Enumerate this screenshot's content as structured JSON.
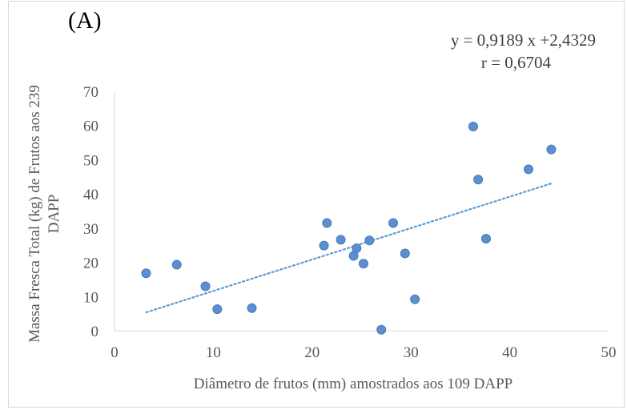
{
  "chart_data": {
    "type": "scatter",
    "panel_label": "(A)",
    "equation": "y = 0,9189 x +2,4329",
    "r_text": "r = 0,6704",
    "xlabel": "Diâmetro de frutos (mm) amostrados aos 109 DAPP",
    "ylabel_line1": "Massa Fresca Total (kg) de Frutos aos 239",
    "ylabel_line2": "DAPP",
    "xlim": [
      0,
      50
    ],
    "ylim": [
      0,
      70
    ],
    "x_ticks": [
      "0",
      "10",
      "20",
      "30",
      "40",
      "50"
    ],
    "y_ticks": [
      "0",
      "10",
      "20",
      "30",
      "40",
      "50",
      "60",
      "70"
    ],
    "grid": false,
    "series": [
      {
        "x": [
          3.2,
          6.3,
          9.2,
          10.4,
          13.9,
          21.2,
          21.5,
          22.9,
          24.2,
          24.5,
          25.2,
          25.8,
          27.0,
          28.2,
          29.4,
          30.4,
          36.3,
          36.8,
          37.6,
          41.9,
          44.2
        ],
        "y": [
          16.8,
          19.3,
          13.0,
          6.3,
          6.6,
          24.9,
          31.5,
          26.6,
          21.9,
          24.1,
          19.6,
          26.4,
          0.3,
          31.5,
          22.6,
          9.2,
          59.7,
          44.2,
          26.9,
          47.2,
          53.0
        ]
      }
    ],
    "trendline": {
      "slope": 0.9189,
      "intercept": 2.4329,
      "x_range": [
        3.2,
        44.2
      ]
    },
    "colors": {
      "marker": "#5b8fd0",
      "marker_stroke": "#4a7ab8",
      "trendline": "#5b9bd5",
      "axis": "#d9d9d9"
    }
  }
}
